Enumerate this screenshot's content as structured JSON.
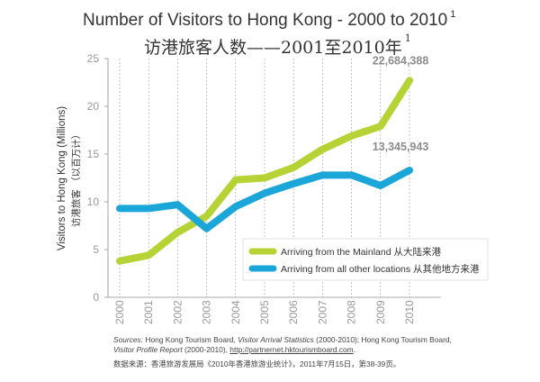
{
  "title": {
    "en": "Number of Visitors to Hong Kong - 2000 to 2010",
    "zh": "访港旅客人数——2001至2010年",
    "footnote_mark": "1"
  },
  "sources": {
    "prefix": "Sources:",
    "part1": " Hong Kong Tourism Board, ",
    "publication1": "Visitor Arrival Statistics",
    "part2": " (2000-2010); Hong Kong Tourism Board,",
    "publication2": "Visitor Profile Report",
    "part3": " (2000-2010), ",
    "link": "http://partnernet.hktourismboard.com",
    "end": ".",
    "zh": "数据来源：香港旅游发展局《2010年香港旅游业统计》，2011年7月15日，第38-39页。"
  },
  "chart_data": {
    "type": "line",
    "title": "Number of Visitors to Hong Kong - 2000 to 2010",
    "subtitle": "访港旅客人数——2001至2010年",
    "ylabel": "Visitors to Hong Kong (Millions)",
    "ylabel_zh": "访港旅客 （以百万计）",
    "ylim": [
      0,
      25
    ],
    "yticks": [
      0,
      5,
      10,
      15,
      20,
      25
    ],
    "grid": "vertical dashed lines at each year",
    "legend_position": "bottom-right",
    "categories": [
      "2000",
      "2001",
      "2002",
      "2003",
      "2004",
      "2005",
      "2006",
      "2007",
      "2008",
      "2009",
      "2010"
    ],
    "series": [
      {
        "name": "Arriving from the Mainland  从大陆来港",
        "color": "#b5d334",
        "values": [
          3.8,
          4.4,
          6.8,
          8.5,
          12.3,
          12.5,
          13.6,
          15.5,
          16.9,
          17.9,
          22.7
        ],
        "end_label": "22,684,388"
      },
      {
        "name": "Arriving from all other locations  从其他地方来港",
        "color": "#1aa6d8",
        "values": [
          9.3,
          9.3,
          9.7,
          7.2,
          9.5,
          10.9,
          11.9,
          12.8,
          12.8,
          11.7,
          13.3
        ],
        "end_label": "13,345,943"
      }
    ]
  }
}
